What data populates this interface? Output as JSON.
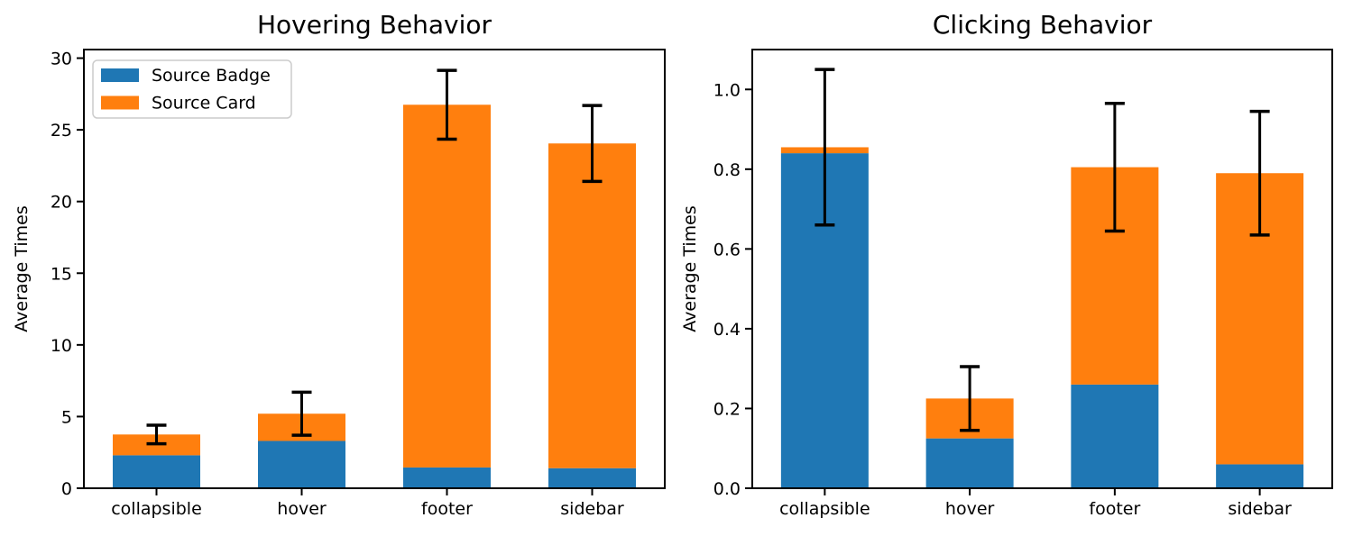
{
  "figure": {
    "background": "#ffffff"
  },
  "colors": {
    "source_badge": "#1f77b4",
    "source_card": "#ff7f0e",
    "error_bar": "#000000",
    "axis": "#000000",
    "text": "#000000",
    "legend_border": "#cccccc",
    "legend_background": "#ffffff"
  },
  "chart_data": [
    {
      "type": "bar",
      "stacked": true,
      "title": "Hovering Behavior",
      "xlabel": "",
      "ylabel": "Average Times",
      "categories": [
        "collapsible",
        "hover",
        "footer",
        "sidebar"
      ],
      "series": [
        {
          "name": "Source Badge",
          "color_key": "source_badge",
          "values": [
            2.3,
            3.3,
            1.45,
            1.4
          ]
        },
        {
          "name": "Source Card",
          "color_key": "source_card",
          "values": [
            1.45,
            1.9,
            25.3,
            22.65
          ]
        }
      ],
      "stack_totals": [
        3.75,
        5.2,
        26.75,
        24.05
      ],
      "error_bars": [
        0.65,
        1.5,
        2.4,
        2.65
      ],
      "ylim": [
        0,
        30.6
      ],
      "yticks": [
        0,
        5,
        10,
        15,
        20,
        25,
        30
      ],
      "ytick_labels": [
        "0",
        "5",
        "10",
        "15",
        "20",
        "25",
        "30"
      ],
      "grid": false,
      "legend": {
        "visible": true,
        "position": "upper left",
        "entries": [
          "Source Badge",
          "Source Card"
        ]
      }
    },
    {
      "type": "bar",
      "stacked": true,
      "title": "Clicking Behavior",
      "xlabel": "",
      "ylabel": "Average Times",
      "categories": [
        "collapsible",
        "hover",
        "footer",
        "sidebar"
      ],
      "series": [
        {
          "name": "Source Badge",
          "color_key": "source_badge",
          "values": [
            0.84,
            0.125,
            0.26,
            0.06
          ]
        },
        {
          "name": "Source Card",
          "color_key": "source_card",
          "values": [
            0.015,
            0.1,
            0.545,
            0.73
          ]
        }
      ],
      "stack_totals": [
        0.855,
        0.225,
        0.805,
        0.79
      ],
      "error_bars": [
        0.195,
        0.08,
        0.16,
        0.155
      ],
      "ylim": [
        0,
        1.1
      ],
      "yticks": [
        0.0,
        0.2,
        0.4,
        0.6,
        0.8,
        1.0
      ],
      "ytick_labels": [
        "0.0",
        "0.2",
        "0.4",
        "0.6",
        "0.8",
        "1.0"
      ],
      "grid": false,
      "legend": {
        "visible": false,
        "position": null,
        "entries": []
      }
    }
  ]
}
